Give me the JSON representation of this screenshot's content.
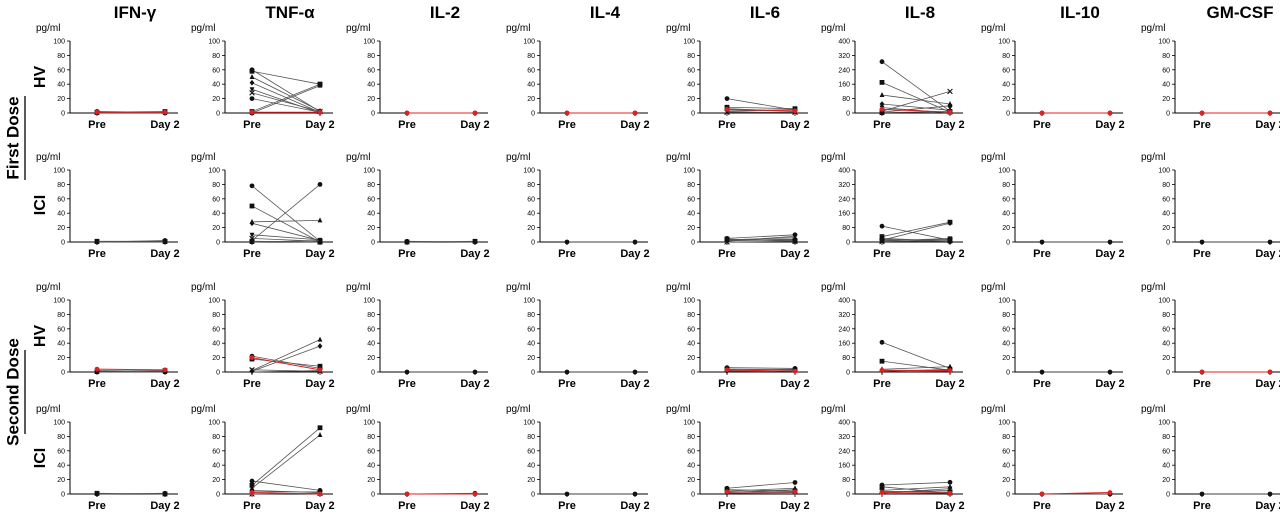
{
  "categories": [
    "Pre",
    "Day 2"
  ],
  "unit": "pg/ml",
  "columns": [
    "IFN-γ",
    "TNF-α",
    "IL-2",
    "IL-4",
    "IL-6",
    "IL-8",
    "IL-10",
    "GM-CSF"
  ],
  "doses": [
    "First Dose",
    "Second Dose"
  ],
  "groups": [
    "HV",
    "ICI"
  ],
  "colors": {
    "line": "#555555",
    "marker": "#111111",
    "highlight": "#e02020"
  },
  "chart_data": [
    {
      "type": "line",
      "dose": "First Dose",
      "group": "HV",
      "cytokine": "IFN-γ",
      "x": [
        "Pre",
        "Day 2"
      ],
      "ylim": [
        0,
        100
      ],
      "ylabel": "pg/ml",
      "series": [
        {
          "values": [
            2,
            1
          ]
        },
        {
          "values": [
            1,
            2
          ]
        },
        {
          "values": [
            0,
            0
          ]
        },
        {
          "values": [
            1,
            1
          ],
          "color": "red"
        }
      ]
    },
    {
      "type": "line",
      "dose": "First Dose",
      "group": "HV",
      "cytokine": "TNF-α",
      "x": [
        "Pre",
        "Day 2"
      ],
      "ylim": [
        0,
        100
      ],
      "ylabel": "pg/ml",
      "series": [
        {
          "values": [
            60,
            2
          ]
        },
        {
          "values": [
            58,
            40
          ]
        },
        {
          "values": [
            50,
            3
          ]
        },
        {
          "values": [
            42,
            1
          ]
        },
        {
          "values": [
            33,
            0
          ]
        },
        {
          "values": [
            28,
            2
          ]
        },
        {
          "values": [
            20,
            1
          ]
        },
        {
          "values": [
            2,
            40
          ]
        },
        {
          "values": [
            0,
            38
          ]
        },
        {
          "values": [
            1,
            1
          ],
          "color": "red"
        }
      ]
    },
    {
      "type": "line",
      "dose": "First Dose",
      "group": "HV",
      "cytokine": "IL-2",
      "x": [
        "Pre",
        "Day 2"
      ],
      "ylim": [
        0,
        100
      ],
      "ylabel": "pg/ml",
      "series": [
        {
          "values": [
            0,
            0
          ]
        },
        {
          "values": [
            0,
            0
          ],
          "color": "red"
        }
      ]
    },
    {
      "type": "line",
      "dose": "First Dose",
      "group": "HV",
      "cytokine": "IL-4",
      "x": [
        "Pre",
        "Day 2"
      ],
      "ylim": [
        0,
        100
      ],
      "ylabel": "pg/ml",
      "series": [
        {
          "values": [
            0,
            0
          ]
        },
        {
          "values": [
            0,
            0
          ],
          "color": "red"
        }
      ]
    },
    {
      "type": "line",
      "dose": "First Dose",
      "group": "HV",
      "cytokine": "IL-6",
      "x": [
        "Pre",
        "Day 2"
      ],
      "ylim": [
        0,
        100
      ],
      "ylabel": "pg/ml",
      "series": [
        {
          "values": [
            20,
            4
          ]
        },
        {
          "values": [
            8,
            6
          ]
        },
        {
          "values": [
            6,
            2
          ]
        },
        {
          "values": [
            4,
            3
          ]
        },
        {
          "values": [
            2,
            5
          ]
        },
        {
          "values": [
            1,
            1
          ]
        },
        {
          "values": [
            5,
            3
          ],
          "color": "red"
        }
      ]
    },
    {
      "type": "line",
      "dose": "First Dose",
      "group": "HV",
      "cytokine": "IL-8",
      "x": [
        "Pre",
        "Day 2"
      ],
      "ylim": [
        0,
        400
      ],
      "ylabel": "pg/ml",
      "series": [
        {
          "values": [
            285,
            10
          ]
        },
        {
          "values": [
            170,
            5
          ]
        },
        {
          "values": [
            100,
            50
          ]
        },
        {
          "values": [
            50,
            15
          ]
        },
        {
          "values": [
            30,
            0
          ]
        },
        {
          "values": [
            10,
            120
          ]
        },
        {
          "values": [
            5,
            40
          ]
        },
        {
          "values": [
            2,
            8
          ]
        },
        {
          "values": [
            20,
            5
          ],
          "color": "red"
        }
      ]
    },
    {
      "type": "line",
      "dose": "First Dose",
      "group": "HV",
      "cytokine": "IL-10",
      "x": [
        "Pre",
        "Day 2"
      ],
      "ylim": [
        0,
        100
      ],
      "ylabel": "pg/ml",
      "series": [
        {
          "values": [
            0,
            0
          ]
        },
        {
          "values": [
            0,
            0
          ],
          "color": "red"
        }
      ]
    },
    {
      "type": "line",
      "dose": "First Dose",
      "group": "HV",
      "cytokine": "GM-CSF",
      "x": [
        "Pre",
        "Day 2"
      ],
      "ylim": [
        0,
        100
      ],
      "ylabel": "pg/ml",
      "series": [
        {
          "values": [
            0,
            0
          ]
        },
        {
          "values": [
            0,
            0
          ],
          "color": "red"
        }
      ]
    },
    {
      "type": "line",
      "dose": "First Dose",
      "group": "ICI",
      "cytokine": "IFN-γ",
      "x": [
        "Pre",
        "Day 2"
      ],
      "ylim": [
        0,
        100
      ],
      "ylabel": "pg/ml",
      "series": [
        {
          "values": [
            0,
            2
          ]
        },
        {
          "values": [
            1,
            1
          ]
        },
        {
          "values": [
            0,
            0
          ]
        }
      ]
    },
    {
      "type": "line",
      "dose": "First Dose",
      "group": "ICI",
      "cytokine": "TNF-α",
      "x": [
        "Pre",
        "Day 2"
      ],
      "ylim": [
        0,
        100
      ],
      "ylabel": "pg/ml",
      "series": [
        {
          "values": [
            78,
            1
          ]
        },
        {
          "values": [
            50,
            0
          ]
        },
        {
          "values": [
            28,
            30
          ]
        },
        {
          "values": [
            26,
            2
          ]
        },
        {
          "values": [
            10,
            3
          ]
        },
        {
          "values": [
            5,
            1
          ]
        },
        {
          "values": [
            2,
            80
          ]
        },
        {
          "values": [
            1,
            0
          ]
        },
        {
          "values": [
            0,
            2
          ]
        }
      ]
    },
    {
      "type": "line",
      "dose": "First Dose",
      "group": "ICI",
      "cytokine": "IL-2",
      "x": [
        "Pre",
        "Day 2"
      ],
      "ylim": [
        0,
        100
      ],
      "ylabel": "pg/ml",
      "series": [
        {
          "values": [
            1,
            0
          ]
        },
        {
          "values": [
            0,
            1
          ]
        }
      ]
    },
    {
      "type": "line",
      "dose": "First Dose",
      "group": "ICI",
      "cytokine": "IL-4",
      "x": [
        "Pre",
        "Day 2"
      ],
      "ylim": [
        0,
        100
      ],
      "ylabel": "pg/ml",
      "series": [
        {
          "values": [
            0,
            0
          ]
        }
      ]
    },
    {
      "type": "line",
      "dose": "First Dose",
      "group": "ICI",
      "cytokine": "IL-6",
      "x": [
        "Pre",
        "Day 2"
      ],
      "ylim": [
        0,
        100
      ],
      "ylabel": "pg/ml",
      "series": [
        {
          "values": [
            5,
            10
          ]
        },
        {
          "values": [
            4,
            2
          ]
        },
        {
          "values": [
            3,
            6
          ]
        },
        {
          "values": [
            2,
            4
          ]
        },
        {
          "values": [
            1,
            8
          ]
        },
        {
          "values": [
            0,
            1
          ]
        },
        {
          "values": [
            2,
            3
          ]
        },
        {
          "values": [
            4,
            1
          ]
        }
      ]
    },
    {
      "type": "line",
      "dose": "First Dose",
      "group": "ICI",
      "cytokine": "IL-8",
      "x": [
        "Pre",
        "Day 2"
      ],
      "ylim": [
        0,
        400
      ],
      "ylabel": "pg/ml",
      "series": [
        {
          "values": [
            88,
            10
          ]
        },
        {
          "values": [
            30,
            110
          ]
        },
        {
          "values": [
            20,
            5
          ]
        },
        {
          "values": [
            10,
            105
          ]
        },
        {
          "values": [
            5,
            20
          ]
        },
        {
          "values": [
            2,
            8
          ]
        },
        {
          "values": [
            15,
            2
          ]
        },
        {
          "values": [
            8,
            15
          ]
        }
      ]
    },
    {
      "type": "line",
      "dose": "First Dose",
      "group": "ICI",
      "cytokine": "IL-10",
      "x": [
        "Pre",
        "Day 2"
      ],
      "ylim": [
        0,
        100
      ],
      "ylabel": "pg/ml",
      "series": [
        {
          "values": [
            0,
            0
          ]
        }
      ]
    },
    {
      "type": "line",
      "dose": "First Dose",
      "group": "ICI",
      "cytokine": "GM-CSF",
      "x": [
        "Pre",
        "Day 2"
      ],
      "ylim": [
        0,
        100
      ],
      "ylabel": "pg/ml",
      "series": [
        {
          "values": [
            0,
            0
          ]
        }
      ]
    },
    {
      "type": "line",
      "dose": "Second Dose",
      "group": "HV",
      "cytokine": "IFN-γ",
      "x": [
        "Pre",
        "Day 2"
      ],
      "ylim": [
        0,
        100
      ],
      "ylabel": "pg/ml",
      "series": [
        {
          "values": [
            2,
            1
          ]
        },
        {
          "values": [
            1,
            2
          ]
        },
        {
          "values": [
            0,
            0
          ]
        },
        {
          "values": [
            4,
            3
          ],
          "color": "red"
        }
      ]
    },
    {
      "type": "line",
      "dose": "Second Dose",
      "group": "HV",
      "cytokine": "TNF-α",
      "x": [
        "Pre",
        "Day 2"
      ],
      "ylim": [
        0,
        100
      ],
      "ylabel": "pg/ml",
      "series": [
        {
          "values": [
            22,
            5
          ]
        },
        {
          "values": [
            18,
            8
          ]
        },
        {
          "values": [
            2,
            45
          ]
        },
        {
          "values": [
            1,
            36
          ]
        },
        {
          "values": [
            0,
            2
          ]
        },
        {
          "values": [
            3,
            1
          ]
        },
        {
          "values": [
            20,
            3
          ],
          "color": "red"
        }
      ]
    },
    {
      "type": "line",
      "dose": "Second Dose",
      "group": "HV",
      "cytokine": "IL-2",
      "x": [
        "Pre",
        "Day 2"
      ],
      "ylim": [
        0,
        100
      ],
      "ylabel": "pg/ml",
      "series": [
        {
          "values": [
            0,
            0
          ]
        }
      ]
    },
    {
      "type": "line",
      "dose": "Second Dose",
      "group": "HV",
      "cytokine": "IL-4",
      "x": [
        "Pre",
        "Day 2"
      ],
      "ylim": [
        0,
        100
      ],
      "ylabel": "pg/ml",
      "series": [
        {
          "values": [
            0,
            0
          ]
        }
      ]
    },
    {
      "type": "line",
      "dose": "Second Dose",
      "group": "HV",
      "cytokine": "IL-6",
      "x": [
        "Pre",
        "Day 2"
      ],
      "ylim": [
        0,
        100
      ],
      "ylabel": "pg/ml",
      "series": [
        {
          "values": [
            6,
            5
          ]
        },
        {
          "values": [
            4,
            3
          ]
        },
        {
          "values": [
            2,
            4
          ]
        },
        {
          "values": [
            1,
            2
          ]
        },
        {
          "values": [
            3,
            1
          ],
          "color": "red"
        }
      ]
    },
    {
      "type": "line",
      "dose": "Second Dose",
      "group": "HV",
      "cytokine": "IL-8",
      "x": [
        "Pre",
        "Day 2"
      ],
      "ylim": [
        0,
        400
      ],
      "ylabel": "pg/ml",
      "series": [
        {
          "values": [
            165,
            20
          ]
        },
        {
          "values": [
            60,
            10
          ]
        },
        {
          "values": [
            15,
            30
          ]
        },
        {
          "values": [
            8,
            5
          ]
        },
        {
          "values": [
            3,
            15
          ]
        },
        {
          "values": [
            10,
            8
          ],
          "color": "red"
        }
      ]
    },
    {
      "type": "line",
      "dose": "Second Dose",
      "group": "HV",
      "cytokine": "IL-10",
      "x": [
        "Pre",
        "Day 2"
      ],
      "ylim": [
        0,
        100
      ],
      "ylabel": "pg/ml",
      "series": [
        {
          "values": [
            0,
            0
          ]
        }
      ]
    },
    {
      "type": "line",
      "dose": "Second Dose",
      "group": "HV",
      "cytokine": "GM-CSF",
      "x": [
        "Pre",
        "Day 2"
      ],
      "ylim": [
        0,
        100
      ],
      "ylabel": "pg/ml",
      "series": [
        {
          "values": [
            0,
            0
          ]
        },
        {
          "values": [
            0,
            0
          ],
          "color": "red"
        }
      ]
    },
    {
      "type": "line",
      "dose": "Second Dose",
      "group": "ICI",
      "cytokine": "IFN-γ",
      "x": [
        "Pre",
        "Day 2"
      ],
      "ylim": [
        0,
        100
      ],
      "ylabel": "pg/ml",
      "series": [
        {
          "values": [
            0,
            1
          ]
        },
        {
          "values": [
            1,
            0
          ]
        }
      ]
    },
    {
      "type": "line",
      "dose": "Second Dose",
      "group": "ICI",
      "cytokine": "TNF-α",
      "x": [
        "Pre",
        "Day 2"
      ],
      "ylim": [
        0,
        100
      ],
      "ylabel": "pg/ml",
      "series": [
        {
          "values": [
            18,
            5
          ]
        },
        {
          "values": [
            12,
            92
          ]
        },
        {
          "values": [
            8,
            82
          ]
        },
        {
          "values": [
            5,
            2
          ]
        },
        {
          "values": [
            3,
            3
          ]
        },
        {
          "values": [
            0,
            1
          ]
        },
        {
          "values": [
            2,
            0
          ],
          "color": "red"
        }
      ]
    },
    {
      "type": "line",
      "dose": "Second Dose",
      "group": "ICI",
      "cytokine": "IL-2",
      "x": [
        "Pre",
        "Day 2"
      ],
      "ylim": [
        0,
        100
      ],
      "ylabel": "pg/ml",
      "series": [
        {
          "values": [
            0,
            1
          ]
        },
        {
          "values": [
            0,
            0
          ],
          "color": "red"
        }
      ]
    },
    {
      "type": "line",
      "dose": "Second Dose",
      "group": "ICI",
      "cytokine": "IL-4",
      "x": [
        "Pre",
        "Day 2"
      ],
      "ylim": [
        0,
        100
      ],
      "ylabel": "pg/ml",
      "series": [
        {
          "values": [
            0,
            0
          ]
        }
      ]
    },
    {
      "type": "line",
      "dose": "Second Dose",
      "group": "ICI",
      "cytokine": "IL-6",
      "x": [
        "Pre",
        "Day 2"
      ],
      "ylim": [
        0,
        100
      ],
      "ylabel": "pg/ml",
      "series": [
        {
          "values": [
            8,
            16
          ]
        },
        {
          "values": [
            6,
            4
          ]
        },
        {
          "values": [
            4,
            8
          ]
        },
        {
          "values": [
            2,
            6
          ]
        },
        {
          "values": [
            1,
            2
          ]
        },
        {
          "values": [
            3,
            3
          ],
          "color": "red"
        }
      ]
    },
    {
      "type": "line",
      "dose": "Second Dose",
      "group": "ICI",
      "cytokine": "IL-8",
      "x": [
        "Pre",
        "Day 2"
      ],
      "ylim": [
        0,
        400
      ],
      "ylabel": "pg/ml",
      "series": [
        {
          "values": [
            50,
            65
          ]
        },
        {
          "values": [
            40,
            5
          ]
        },
        {
          "values": [
            20,
            40
          ]
        },
        {
          "values": [
            10,
            20
          ]
        },
        {
          "values": [
            5,
            30
          ]
        },
        {
          "values": [
            15,
            10
          ]
        },
        {
          "values": [
            8,
            5
          ],
          "color": "red"
        }
      ]
    },
    {
      "type": "line",
      "dose": "Second Dose",
      "group": "ICI",
      "cytokine": "IL-10",
      "x": [
        "Pre",
        "Day 2"
      ],
      "ylim": [
        0,
        100
      ],
      "ylabel": "pg/ml",
      "series": [
        {
          "values": [
            0,
            0
          ]
        },
        {
          "values": [
            0,
            2
          ],
          "color": "red"
        }
      ]
    },
    {
      "type": "line",
      "dose": "Second Dose",
      "group": "ICI",
      "cytokine": "GM-CSF",
      "x": [
        "Pre",
        "Day 2"
      ],
      "ylim": [
        0,
        100
      ],
      "ylabel": "pg/ml",
      "series": [
        {
          "values": [
            0,
            0
          ]
        }
      ]
    }
  ]
}
